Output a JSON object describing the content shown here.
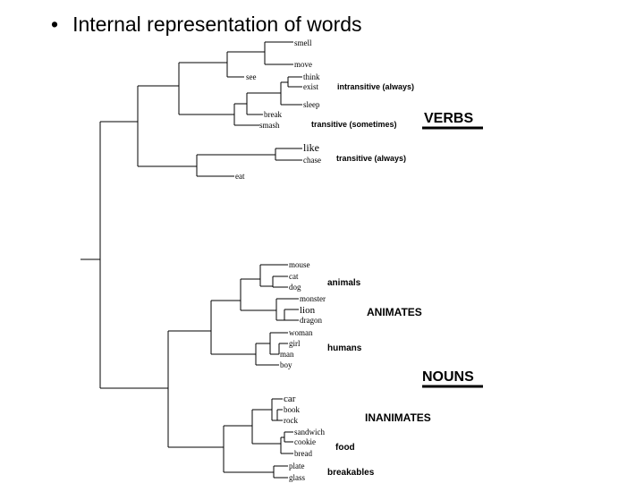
{
  "slide": {
    "bullet": "•",
    "title": "Internal representation of words"
  },
  "leaves": {
    "smell": "smell",
    "move": "move",
    "see": "see",
    "think": "think",
    "exist": "exist",
    "sleep": "sleep",
    "break": "break",
    "smash": "smash",
    "like": "like",
    "chase": "chase",
    "eat": "eat",
    "mouse": "mouse",
    "cat": "cat",
    "dog": "dog",
    "monster": "monster",
    "lion": "lion",
    "dragon": "dragon",
    "woman": "woman",
    "girl": "girl",
    "man": "man",
    "boy": "boy",
    "car": "car",
    "book": "book",
    "rock": "rock",
    "sandwich": "sandwich",
    "cookie": "cookie",
    "bread": "bread",
    "plate": "plate",
    "glass": "glass"
  },
  "annotations": {
    "intransitive": "intransitive (always)",
    "transitive_sometimes": "transitive (sometimes)",
    "transitive_always": "transitive (always)",
    "verbs": "VERBS",
    "animals": "animals",
    "animates": "ANIMATES",
    "humans": "humans",
    "nouns": "NOUNS",
    "inanimates": "INANIMATES",
    "food": "food",
    "breakables": "breakables"
  }
}
